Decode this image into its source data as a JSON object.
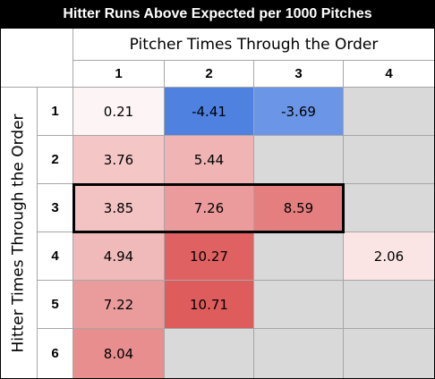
{
  "header": {
    "title": "Hitter Runs Above Expected per 1000 Pitches"
  },
  "table": {
    "column_header": "Pitcher Times Through the Order",
    "row_header": "Hitter Times Through the Order",
    "columns": [
      "1",
      "2",
      "3",
      "4"
    ],
    "rows": [
      "1",
      "2",
      "3",
      "4",
      "5",
      "6"
    ],
    "cells": [
      [
        0.21,
        -4.41,
        -3.69,
        null
      ],
      [
        3.76,
        5.44,
        null,
        null
      ],
      [
        3.85,
        7.26,
        8.59,
        null
      ],
      [
        4.94,
        10.27,
        null,
        2.06
      ],
      [
        7.22,
        10.71,
        null,
        null
      ],
      [
        8.04,
        null,
        null,
        null
      ]
    ],
    "colors": [
      [
        "#fdf5f5",
        "#4f81e0",
        "#6b95e6",
        "#d9d9d9"
      ],
      [
        "#f4c6c6",
        "#f0b4b4",
        "#d9d9d9",
        "#d9d9d9"
      ],
      [
        "#f3c3c3",
        "#eb9b9b",
        "#e57f7f",
        "#d9d9d9"
      ],
      [
        "#f0baba",
        "#e06161",
        "#d9d9d9",
        "#fbe4e4"
      ],
      [
        "#ea9c9c",
        "#df5c5c",
        "#d9d9d9",
        "#d9d9d9"
      ],
      [
        "#e88e8e",
        "#d9d9d9",
        "#d9d9d9",
        "#d9d9d9"
      ]
    ]
  }
}
